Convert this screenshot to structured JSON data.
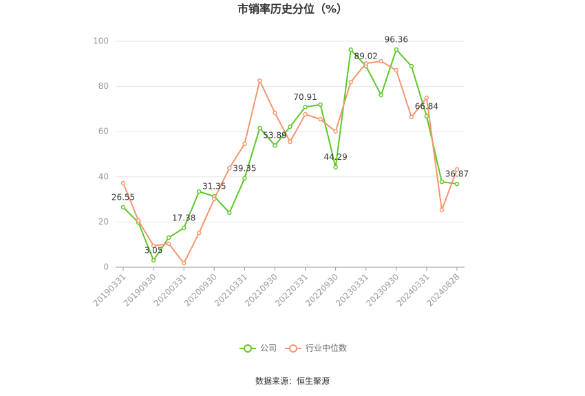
{
  "chart_data": {
    "type": "line",
    "title": "市销率历史分位（%）",
    "source": "数据来源：恒生聚源",
    "categories": [
      "20190331",
      null,
      "20190930",
      null,
      "20200331",
      null,
      "20200930",
      null,
      "20210331",
      null,
      "20210930",
      null,
      "20220331",
      null,
      "20220930",
      null,
      "20230331",
      null,
      "20230930",
      null,
      "20240331",
      null,
      "20240828"
    ],
    "series": [
      {
        "name": "公司",
        "color": "#5cc728",
        "values": [
          26.55,
          19.8,
          3.05,
          13.1,
          17.38,
          33.5,
          31.35,
          24.1,
          39.35,
          61.6,
          53.89,
          62.2,
          70.91,
          72.0,
          44.29,
          96.3,
          89.02,
          76.2,
          96.36,
          89.0,
          66.84,
          37.8,
          36.87
        ]
      },
      {
        "name": "行业中位数",
        "color": "#f4956b",
        "values": [
          37.2,
          20.7,
          9.5,
          10.4,
          1.8,
          15.2,
          30.2,
          43.9,
          54.6,
          82.6,
          68.3,
          55.5,
          67.7,
          65.5,
          60.1,
          82.0,
          90.2,
          91.2,
          87.2,
          66.5,
          75.0,
          25.3,
          43.3
        ]
      }
    ],
    "ylim": [
      0,
      100
    ],
    "yticks": [
      0,
      20,
      40,
      60,
      80,
      100
    ],
    "grid": true
  }
}
